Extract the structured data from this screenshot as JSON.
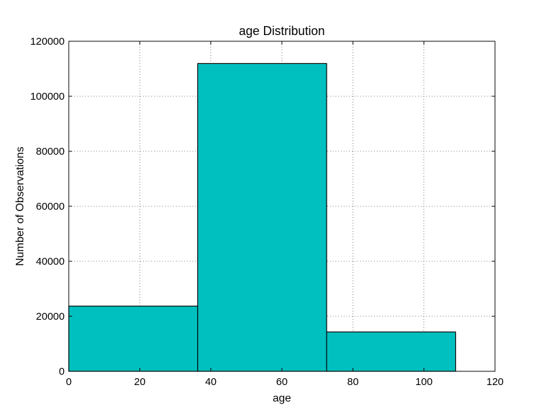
{
  "chart_data": {
    "type": "bar",
    "title": "age Distribution",
    "xlabel": "age",
    "ylabel": "Number of Observations",
    "xlim": [
      0,
      120
    ],
    "ylim": [
      0,
      120000
    ],
    "x_ticks": [
      0,
      20,
      40,
      60,
      80,
      100,
      120
    ],
    "y_ticks": [
      0,
      20000,
      40000,
      60000,
      80000,
      100000,
      120000
    ],
    "x_tick_labels": [
      "0",
      "20",
      "40",
      "60",
      "80",
      "100",
      "120"
    ],
    "y_tick_labels": [
      "0",
      "20000",
      "40000",
      "60000",
      "80000",
      "100000",
      "120000"
    ],
    "bins": [
      {
        "x_start": 0,
        "x_end": 36.3,
        "value": 23700
      },
      {
        "x_start": 36.3,
        "x_end": 72.6,
        "value": 111900
      },
      {
        "x_start": 72.6,
        "x_end": 108.9,
        "value": 14300
      }
    ],
    "grid": true,
    "bar_color": "#00bfbf",
    "edge_color": "#000000"
  }
}
